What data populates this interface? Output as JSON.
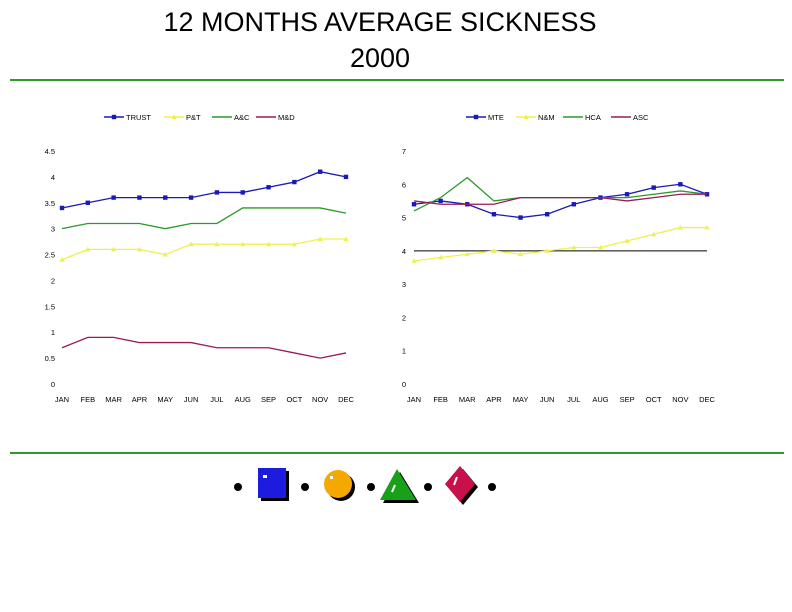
{
  "title": {
    "line1": "12 MONTHS AVERAGE SICKNESS",
    "line2": "2000"
  },
  "colors": {
    "rule": "#2e9a2e"
  },
  "chart_data": [
    {
      "type": "line",
      "categories": [
        "JAN",
        "FEB",
        "MAR",
        "APR",
        "MAY",
        "JUN",
        "JUL",
        "AUG",
        "SEP",
        "OCT",
        "NOV",
        "DEC"
      ],
      "ylim": [
        0,
        4.5
      ],
      "yticks": [
        0,
        0.5,
        1,
        1.5,
        2,
        2.5,
        3,
        3.5,
        4,
        4.5
      ],
      "ytick_labels": [
        "0",
        "0.5",
        "1",
        "1.5",
        "2",
        "2.5",
        "3",
        "3.5",
        "4",
        "4.5"
      ],
      "legend_position": "top",
      "series": [
        {
          "name": "TRUST",
          "color": "#1a1ab8",
          "marker": "square",
          "values": [
            3.4,
            3.5,
            3.6,
            3.6,
            3.6,
            3.6,
            3.7,
            3.7,
            3.8,
            3.9,
            4.1,
            4.0
          ]
        },
        {
          "name": "P&T",
          "color": "#f0f050",
          "marker": "triangle",
          "values": [
            2.4,
            2.6,
            2.6,
            2.6,
            2.5,
            2.7,
            2.7,
            2.7,
            2.7,
            2.7,
            2.8,
            2.8
          ]
        },
        {
          "name": "A&C",
          "color": "#2a9a2a",
          "marker": "none",
          "values": [
            3.0,
            3.1,
            3.1,
            3.1,
            3.0,
            3.1,
            3.1,
            3.4,
            3.4,
            3.4,
            3.4,
            3.3
          ]
        },
        {
          "name": "M&D",
          "color": "#9a1a5a",
          "marker": "none",
          "values": [
            0.7,
            0.9,
            0.9,
            0.8,
            0.8,
            0.8,
            0.7,
            0.7,
            0.7,
            0.6,
            0.5,
            0.6
          ]
        }
      ]
    },
    {
      "type": "line",
      "categories": [
        "JAN",
        "FEB",
        "MAR",
        "APR",
        "MAY",
        "JUN",
        "JUL",
        "AUG",
        "SEP",
        "OCT",
        "NOV",
        "DEC"
      ],
      "ylim": [
        0,
        7
      ],
      "yticks": [
        0,
        1,
        2,
        3,
        4,
        5,
        6,
        7
      ],
      "ytick_labels": [
        "0",
        "1",
        "2",
        "3",
        "4",
        "5",
        "6",
        "7"
      ],
      "reference_line": 4,
      "legend_position": "top",
      "series": [
        {
          "name": "MTE",
          "color": "#1a1ab8",
          "marker": "square",
          "values": [
            5.4,
            5.5,
            5.4,
            5.1,
            5.0,
            5.1,
            5.4,
            5.6,
            5.7,
            5.9,
            6.0,
            5.7
          ]
        },
        {
          "name": "N&M",
          "color": "#f0f050",
          "marker": "triangle",
          "values": [
            3.7,
            3.8,
            3.9,
            4.0,
            3.9,
            4.0,
            4.1,
            4.1,
            4.3,
            4.5,
            4.7,
            4.7
          ]
        },
        {
          "name": "HCA",
          "color": "#2a9a2a",
          "marker": "none",
          "values": [
            5.2,
            5.6,
            6.2,
            5.5,
            5.6,
            5.6,
            5.6,
            5.6,
            5.6,
            5.7,
            5.8,
            5.7
          ]
        },
        {
          "name": "ASC",
          "color": "#9a1a5a",
          "marker": "none",
          "values": [
            5.5,
            5.4,
            5.4,
            5.4,
            5.6,
            5.6,
            5.6,
            5.6,
            5.5,
            5.6,
            5.7,
            5.7
          ]
        }
      ]
    }
  ],
  "footer_icons": [
    "dot-icon",
    "blue-square-icon",
    "dot-icon",
    "orange-circle-icon",
    "dot-icon",
    "green-triangle-icon",
    "dot-icon",
    "red-diamond-icon",
    "dot-icon"
  ]
}
